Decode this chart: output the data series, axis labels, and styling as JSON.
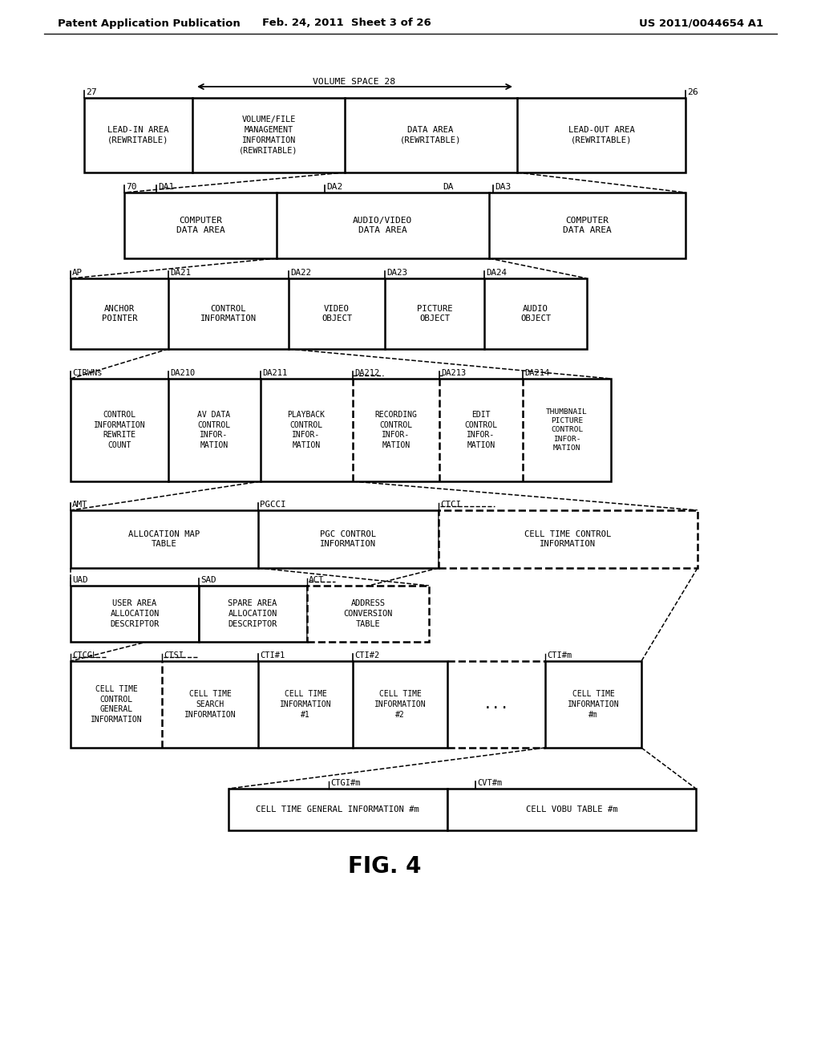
{
  "header_left": "Patent Application Publication",
  "header_mid": "Feb. 24, 2011  Sheet 3 of 26",
  "header_right": "US 2011/0044654 A1",
  "fig_label": "FIG. 4",
  "bg_color": "#ffffff"
}
